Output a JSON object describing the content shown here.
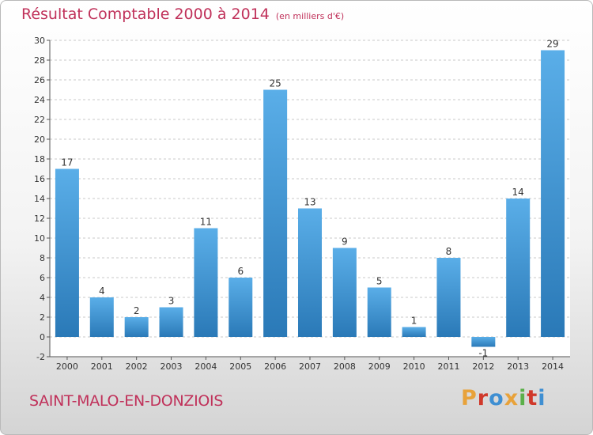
{
  "header": {
    "title": "Résultat Comptable 2000 à 2014",
    "unit": "(en milliers d'€)"
  },
  "footer": {
    "commune": "SAINT-MALO-EN-DONZIOIS",
    "logo_text": "Proxiti",
    "logo_colors": [
      "#e8a23a",
      "#d0392b",
      "#3f8fd2",
      "#e8a23a",
      "#5bb04a",
      "#d0392b",
      "#3f8fd2"
    ]
  },
  "colors": {
    "title": "#c0315a",
    "bar_light": "#5aaee8",
    "bar_dark": "#2a79b7"
  },
  "chart_data": {
    "type": "bar",
    "categories": [
      "2000",
      "2001",
      "2002",
      "2003",
      "2004",
      "2005",
      "2006",
      "2007",
      "2008",
      "2009",
      "2010",
      "2011",
      "2012",
      "2013",
      "2014"
    ],
    "values": [
      17,
      4,
      2,
      3,
      11,
      6,
      25,
      13,
      9,
      5,
      1,
      8,
      -1,
      14,
      29
    ],
    "labels": [
      "17",
      "4",
      "2",
      "3",
      "11",
      "6",
      "25",
      "13",
      "9",
      "5",
      "1",
      "8",
      "-1",
      "14",
      "29"
    ],
    "title": "Résultat Comptable 2000 à 2014",
    "xlabel": "",
    "ylabel": "",
    "ylim": [
      -2,
      30
    ],
    "yticks": [
      -2,
      0,
      2,
      4,
      6,
      8,
      10,
      12,
      14,
      16,
      18,
      20,
      22,
      24,
      26,
      28,
      30
    ],
    "grid": "horizontal dashed",
    "legend": "none"
  }
}
